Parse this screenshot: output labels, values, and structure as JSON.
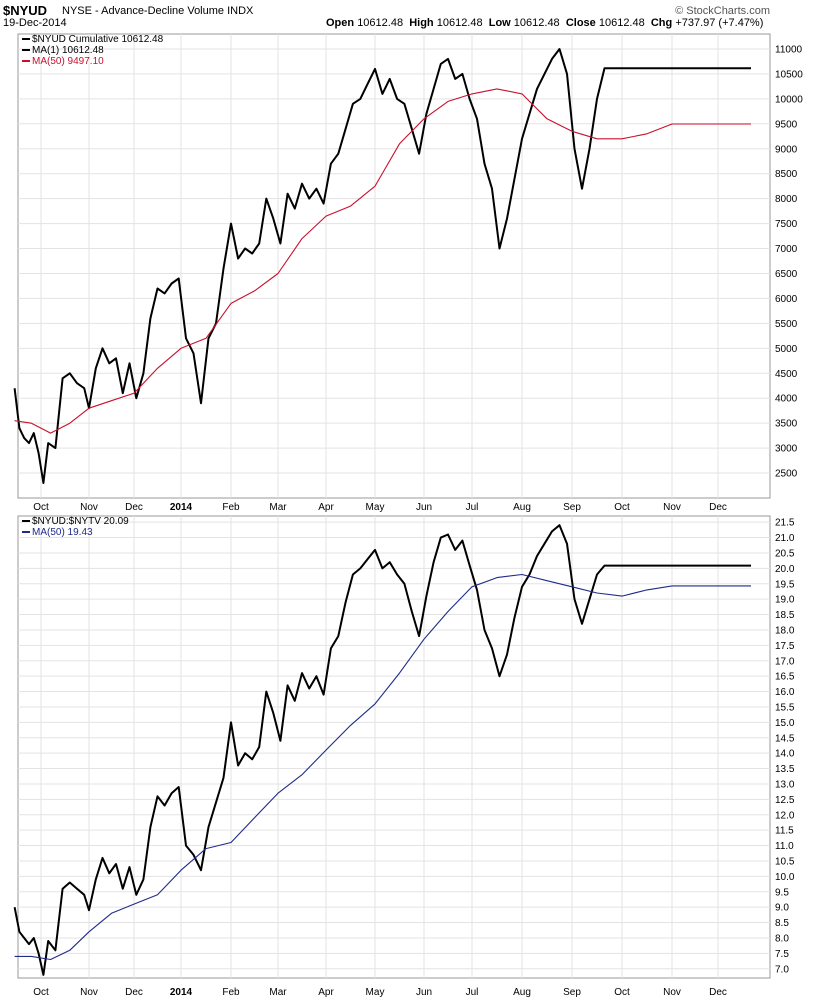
{
  "header": {
    "symbol": "$NYUD",
    "name": "NYSE - Advance-Decline Volume INDX",
    "date": "19-Dec-2014",
    "logo": "© StockCharts.com",
    "open_label": "Open",
    "open": "10612.48",
    "high_label": "High",
    "high": "10612.48",
    "low_label": "Low",
    "low": "10612.48",
    "close_label": "Close",
    "close": "10612.48",
    "chg_label": "Chg",
    "chg": "+737.97 (+7.47%)"
  },
  "chart_data": [
    {
      "type": "line",
      "legend": [
        "$NYUD Cumulative 10612.48",
        "MA(1) 10612.48",
        "MA(50) 9497.10"
      ],
      "legend_colors": [
        "#000000",
        "#000000",
        "#c8102e"
      ],
      "x_tick_labels": [
        "Oct",
        "Nov",
        "Dec",
        "2014",
        "Feb",
        "Mar",
        "Apr",
        "May",
        "Jun",
        "Jul",
        "Aug",
        "Sep",
        "Oct",
        "Nov",
        "Dec"
      ],
      "y_ticks": [
        2500,
        3000,
        3500,
        4000,
        4500,
        5000,
        5500,
        6000,
        6500,
        7000,
        7500,
        8000,
        8500,
        9000,
        9500,
        10000,
        10500,
        11000
      ],
      "ylim": [
        2000,
        11300
      ],
      "x_months": [
        0,
        1,
        2,
        3,
        4,
        5,
        6,
        7,
        8,
        9,
        10,
        11,
        12,
        13,
        14,
        14.6
      ],
      "series": [
        {
          "name": "$NYUD Cumulative",
          "color": "#000000",
          "x": [
            -0.55,
            -0.45,
            -0.35,
            -0.25,
            -0.15,
            -0.05,
            0.05,
            0.15,
            0.3,
            0.45,
            0.6,
            0.75,
            0.9,
            1.0,
            1.15,
            1.3,
            1.45,
            1.6,
            1.75,
            1.9,
            2.05,
            2.2,
            2.35,
            2.5,
            2.65,
            2.8,
            2.95,
            3.1,
            3.25,
            3.4,
            3.55,
            3.7,
            3.85,
            4.0,
            4.15,
            4.3,
            4.45,
            4.6,
            4.75,
            4.9,
            5.05,
            5.2,
            5.35,
            5.5,
            5.65,
            5.8,
            5.95,
            6.1,
            6.25,
            6.4,
            6.55,
            6.7,
            6.85,
            7.0,
            7.15,
            7.3,
            7.45,
            7.6,
            7.75,
            7.9,
            8.05,
            8.2,
            8.35,
            8.5,
            8.65,
            8.8,
            8.95,
            9.1,
            9.25,
            9.4,
            9.55,
            9.7,
            9.85,
            10.0,
            10.15,
            10.3,
            10.45,
            10.6,
            10.75,
            10.9,
            11.05,
            11.2,
            11.35,
            11.5,
            11.65,
            11.8,
            11.95,
            12.1,
            12.25,
            12.4,
            12.55,
            12.7,
            12.85,
            13.0,
            13.15,
            13.3,
            13.45,
            13.6,
            13.75,
            13.9,
            14.05,
            14.2,
            14.35,
            14.5,
            14.6
          ],
          "values": [
            4200,
            3400,
            3200,
            3100,
            3300,
            2900,
            2300,
            3100,
            3000,
            4400,
            4500,
            4300,
            4200,
            3800,
            4600,
            5000,
            4700,
            4800,
            4100,
            4700,
            4000,
            4500,
            5600,
            6200,
            6100,
            6300,
            6400,
            5200,
            4900,
            3900,
            5200,
            5500,
            6600,
            7500,
            6800,
            7000,
            6900,
            7100,
            8000,
            7600,
            7100,
            8100,
            7800,
            8300,
            8000,
            8200,
            7900,
            8700,
            8900,
            9400,
            9900,
            10000,
            10300,
            10600,
            10100,
            10400,
            10000,
            9900,
            9400,
            8900,
            9700,
            10200,
            10700,
            10800,
            10400,
            10500,
            10000,
            9600,
            8700,
            8200,
            7000,
            7600,
            8400,
            9200,
            9700,
            10200,
            10500,
            10800,
            11000,
            10500,
            9000,
            8200,
            9000,
            10000,
            10612,
            10612,
            10612,
            10612,
            10612,
            10612,
            10612,
            10612,
            10612,
            10612,
            10612,
            10612,
            10612,
            10612,
            10612,
            10612,
            10612,
            10612,
            10612,
            10612,
            10612
          ]
        },
        {
          "name": "MA(50)",
          "color": "#c8102e",
          "x": [
            -0.55,
            -0.2,
            0.2,
            0.6,
            1.0,
            1.5,
            2.0,
            2.5,
            3.0,
            3.5,
            4.0,
            4.5,
            5.0,
            5.5,
            6.0,
            6.5,
            7.0,
            7.5,
            8.0,
            8.5,
            9.0,
            9.5,
            10.0,
            10.5,
            11.0,
            11.5,
            12.0,
            12.5,
            13.0,
            13.5,
            14.0,
            14.6
          ],
          "values": [
            3550,
            3500,
            3300,
            3500,
            3800,
            3950,
            4100,
            4600,
            5000,
            5200,
            5900,
            6150,
            6500,
            7200,
            7650,
            7850,
            8250,
            9100,
            9600,
            9950,
            10100,
            10200,
            10100,
            9600,
            9350,
            9200,
            9200,
            9300,
            9497,
            9497,
            9497,
            9497
          ]
        }
      ]
    },
    {
      "type": "line",
      "legend": [
        "$NYUD:$NYTV 20.09",
        "MA(50) 19.43"
      ],
      "legend_colors": [
        "#000000",
        "#1f2b8a"
      ],
      "x_tick_labels": [
        "Oct",
        "Nov",
        "Dec",
        "2014",
        "Feb",
        "Mar",
        "Apr",
        "May",
        "Jun",
        "Jul",
        "Aug",
        "Sep",
        "Oct",
        "Nov",
        "Dec"
      ],
      "y_ticks": [
        7.0,
        7.5,
        8.0,
        8.5,
        9.0,
        9.5,
        10.0,
        10.5,
        11.0,
        11.5,
        12.0,
        12.5,
        13.0,
        13.5,
        14.0,
        14.5,
        15.0,
        15.5,
        16.0,
        16.5,
        17.0,
        17.5,
        18.0,
        18.5,
        19.0,
        19.5,
        20.0,
        20.5,
        21.0,
        21.5
      ],
      "ylim": [
        6.7,
        21.7
      ],
      "series": [
        {
          "name": "$NYUD:$NYTV",
          "color": "#000000",
          "values": [
            9.0,
            8.2,
            8.0,
            7.8,
            8.0,
            7.5,
            6.8,
            7.9,
            7.6,
            9.6,
            9.8,
            9.6,
            9.4,
            8.9,
            9.9,
            10.6,
            10.1,
            10.4,
            9.6,
            10.3,
            9.4,
            9.9,
            11.6,
            12.6,
            12.3,
            12.7,
            12.9,
            11.0,
            10.7,
            10.2,
            11.6,
            12.4,
            13.2,
            15.0,
            13.6,
            14.0,
            13.8,
            14.2,
            16.0,
            15.3,
            14.4,
            16.2,
            15.7,
            16.6,
            16.1,
            16.5,
            15.9,
            17.4,
            17.8,
            18.9,
            19.8,
            20.0,
            20.3,
            20.6,
            20.0,
            20.2,
            19.8,
            19.5,
            18.6,
            17.8,
            19.1,
            20.2,
            21.0,
            21.1,
            20.6,
            20.9,
            20.1,
            19.3,
            18.0,
            17.4,
            16.5,
            17.2,
            18.4,
            19.4,
            19.8,
            20.4,
            20.8,
            21.2,
            21.4,
            20.8,
            19.0,
            18.2,
            19.0,
            19.8,
            20.09,
            20.09,
            20.09,
            20.09,
            20.09,
            20.09,
            20.09,
            20.09,
            20.09,
            20.09,
            20.09,
            20.09,
            20.09,
            20.09,
            20.09,
            20.09,
            20.09,
            20.09,
            20.09,
            20.09,
            20.09
          ]
        },
        {
          "name": "MA(50)",
          "color": "#1f2b8a",
          "values": [
            7.4,
            7.4,
            7.3,
            7.6,
            8.2,
            8.8,
            9.1,
            9.4,
            10.2,
            10.9,
            11.1,
            11.9,
            12.7,
            13.3,
            14.1,
            14.9,
            15.6,
            16.6,
            17.7,
            18.6,
            19.4,
            19.7,
            19.8,
            19.6,
            19.4,
            19.2,
            19.1,
            19.3,
            19.43,
            19.43,
            19.43,
            19.43
          ]
        }
      ]
    }
  ]
}
